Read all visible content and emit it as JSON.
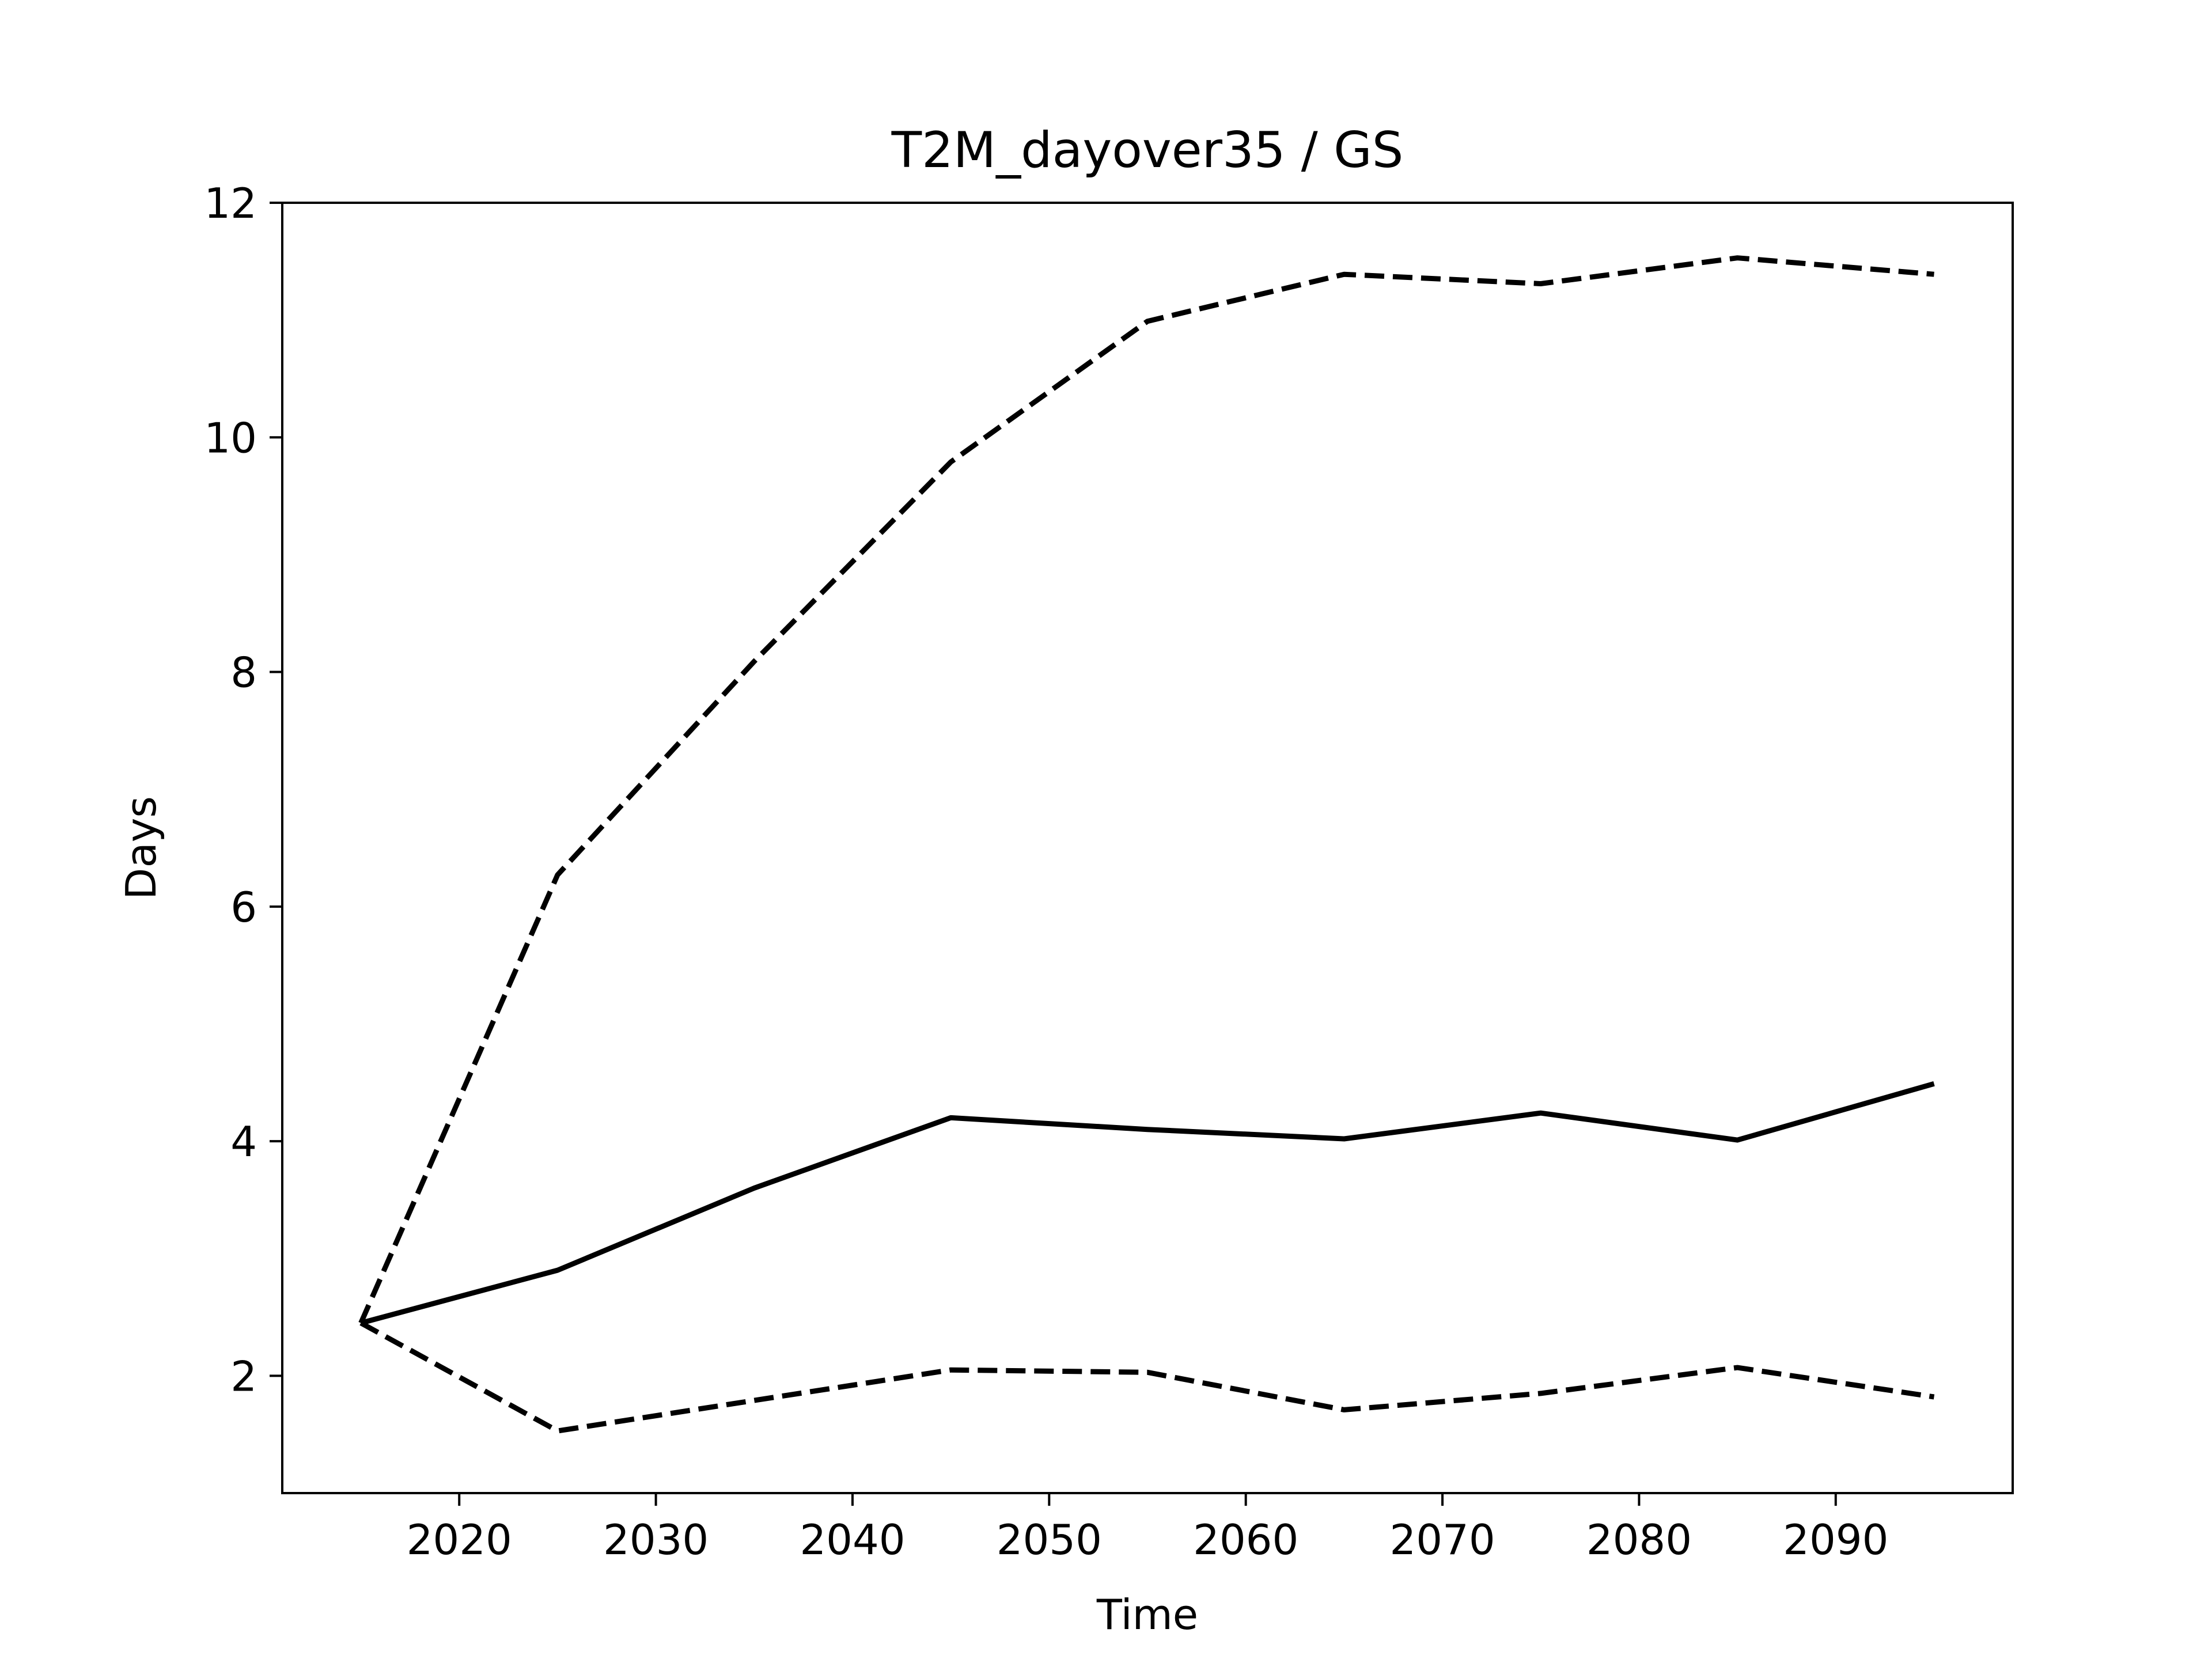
{
  "chart_data": {
    "type": "line",
    "title": "T2M_dayover35 / GS",
    "xlabel": "Time",
    "ylabel": "Days",
    "xlim": [
      2011,
      2099
    ],
    "ylim": [
      1.0,
      12.0
    ],
    "xticks": [
      2020,
      2030,
      2040,
      2050,
      2060,
      2070,
      2080,
      2090
    ],
    "yticks": [
      2,
      4,
      6,
      8,
      10,
      12
    ],
    "grid": false,
    "legend": "none",
    "x": [
      2015,
      2025,
      2035,
      2045,
      2055,
      2065,
      2075,
      2085,
      2095
    ],
    "series": [
      {
        "style": "solid",
        "color": "#000000",
        "values": [
          2.45,
          2.9,
          3.6,
          4.2,
          4.1,
          4.02,
          4.24,
          4.01,
          4.49
        ]
      },
      {
        "style": "dashed",
        "color": "#000000",
        "values": [
          2.45,
          6.27,
          8.09,
          9.79,
          10.99,
          11.39,
          11.31,
          11.53,
          11.39
        ]
      },
      {
        "style": "dashed",
        "color": "#000000",
        "values": [
          2.45,
          1.53,
          1.79,
          2.05,
          2.03,
          1.71,
          1.85,
          2.07,
          1.82
        ]
      }
    ]
  }
}
